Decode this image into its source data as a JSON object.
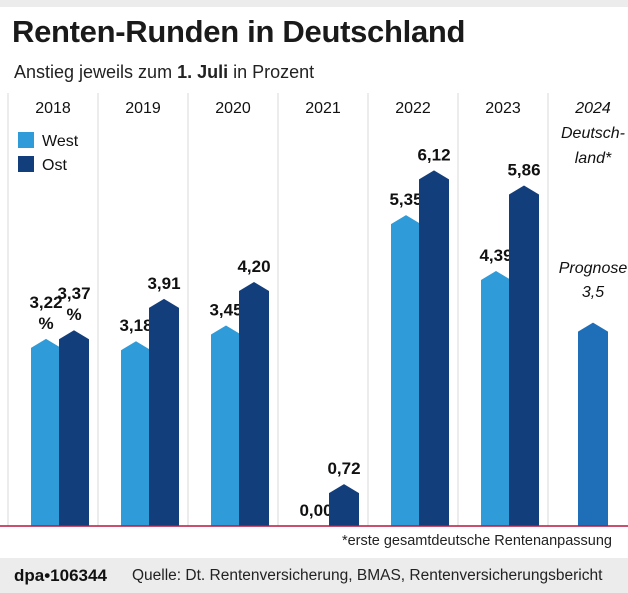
{
  "header": {
    "title": "Renten-Runden in Deutschland",
    "subtitle_pre": "Anstieg jeweils zum ",
    "subtitle_bold": "1. Juli",
    "subtitle_post": " in Prozent"
  },
  "footnote": "*erste gesamtdeutsche Rentenanpassung",
  "footer": {
    "brand": "dpa•106344",
    "source": "Quelle: Dt. Rentenversicherung, BMAS, Rentenversicherungsbericht"
  },
  "colors": {
    "west": "#2f9bd8",
    "ost": "#123e7c",
    "prognose": "#1f6fb8",
    "axis": "#b5173d",
    "grid": "#d9d9d9"
  },
  "chart_data": {
    "type": "bar",
    "categories": [
      "2018",
      "2019",
      "2020",
      "2021",
      "2022",
      "2023",
      "2024"
    ],
    "series": [
      {
        "name": "West",
        "values": [
          3.22,
          3.18,
          3.45,
          0.0,
          5.35,
          4.39,
          null
        ]
      },
      {
        "name": "Ost",
        "values": [
          3.37,
          3.91,
          4.2,
          0.72,
          6.12,
          5.86,
          null
        ]
      }
    ],
    "value_labels": {
      "West": [
        "3,22 %",
        "3,18",
        "3,45",
        "0,00",
        "5,35",
        "4,39",
        null
      ],
      "Ost": [
        "3,37 %",
        "3,91",
        "4,20",
        "0,72",
        "6,12",
        "5,86",
        null
      ]
    },
    "forecast": {
      "category": "2024",
      "category_note": "Deutsch-land*",
      "label": "Prognose",
      "value": 3.5,
      "value_label": "3,5"
    },
    "legend": {
      "position": "top-left",
      "entries": [
        "West",
        "Ost"
      ]
    },
    "ylim": [
      0,
      7
    ],
    "grid": "vertical separators",
    "xlabel": "",
    "ylabel": ""
  }
}
